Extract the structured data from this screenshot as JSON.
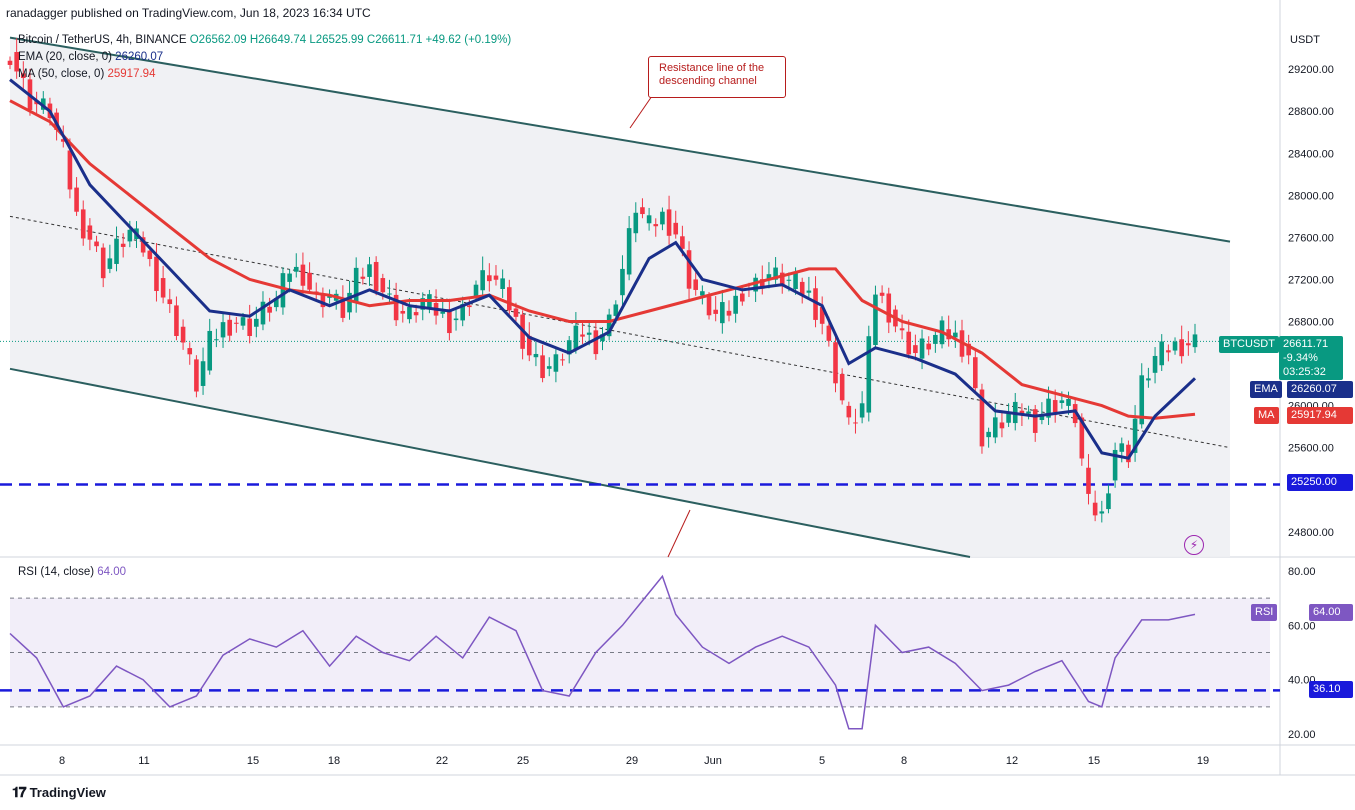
{
  "header": {
    "published_by": "ranadagger published on TradingView.com, Jun 18, 2023 16:34 UTC"
  },
  "legend": {
    "symbol": "Bitcoin / TetherUS, 4h, BINANCE",
    "open": "O26562.09",
    "high": "H26649.74",
    "low": "L26525.99",
    "close": "C26611.71",
    "change": "+49.62 (+0.19%)",
    "ema_label": "EMA (20, close, 0)",
    "ema_value": "26260.07",
    "ma_label": "MA (50, close, 0)",
    "ma_value": "25917.94",
    "rsi_label": "RSI (14, close)",
    "rsi_value": "64.00"
  },
  "annotation": {
    "callout": "Resistance line of the\ndescending channel"
  },
  "right_axis": {
    "currency": "USDT",
    "symbol_tag": "BTCUSDT",
    "last_price": "26611.71",
    "last_change": "-9.34%",
    "countdown": "03:25:32",
    "ema_tag": "EMA",
    "ema_price": "26260.07",
    "ma_tag": "MA",
    "ma_price": "25917.94",
    "support_price": "25250.00",
    "rsi_tag": "RSI",
    "rsi_value": "64.00",
    "rsi_level": "36.10"
  },
  "footer": {
    "brand": "TradingView"
  },
  "colors": {
    "up": "#089981",
    "down": "#f23645",
    "ema": "#1a2f8a",
    "ma": "#e53935",
    "rsi": "#7e57c2",
    "channel": "#2b5f5f",
    "support": "#1a1adb"
  },
  "chart_data": [
    {
      "type": "candlestick",
      "title": "Bitcoin / TetherUS, 4h, BINANCE",
      "ylabel": "USDT",
      "y_ticks": [
        24800,
        25600,
        26000,
        26400,
        26800,
        27200,
        27600,
        28000,
        28400,
        28800,
        29200
      ],
      "x_ticks": [
        "8",
        "11",
        "15",
        "18",
        "22",
        "25",
        "29",
        "Jun",
        "5",
        "8",
        "12",
        "15",
        "19"
      ],
      "ylim": [
        24560,
        29620
      ],
      "horizontal_support": 25250,
      "channel_upper": {
        "start": 29500,
        "end": 27560
      },
      "channel_lower": {
        "start": 26350,
        "end": 24650
      },
      "close_path": [
        [
          0,
          29350
        ],
        [
          3,
          28900
        ],
        [
          6,
          28800
        ],
        [
          8,
          28400
        ],
        [
          10,
          27800
        ],
        [
          12,
          27600
        ],
        [
          14,
          27300
        ],
        [
          16,
          27500
        ],
        [
          18,
          27650
        ],
        [
          20,
          27500
        ],
        [
          22,
          27200
        ],
        [
          24,
          26900
        ],
        [
          26,
          26600
        ],
        [
          28,
          26200
        ],
        [
          30,
          26600
        ],
        [
          32,
          26750
        ],
        [
          34,
          26800
        ],
        [
          36,
          26750
        ],
        [
          38,
          26900
        ],
        [
          40,
          27000
        ],
        [
          42,
          27300
        ],
        [
          44,
          27250
        ],
        [
          46,
          27000
        ],
        [
          48,
          27050
        ],
        [
          50,
          26900
        ],
        [
          52,
          27200
        ],
        [
          54,
          27300
        ],
        [
          56,
          27100
        ],
        [
          58,
          26900
        ],
        [
          60,
          26850
        ],
        [
          62,
          27000
        ],
        [
          64,
          26900
        ],
        [
          66,
          26800
        ],
        [
          68,
          26900
        ],
        [
          70,
          27150
        ],
        [
          72,
          27250
        ],
        [
          74,
          27100
        ],
        [
          76,
          26800
        ],
        [
          78,
          26500
        ],
        [
          80,
          26350
        ],
        [
          82,
          26400
        ],
        [
          84,
          26600
        ],
        [
          86,
          26700
        ],
        [
          88,
          26600
        ],
        [
          90,
          26800
        ],
        [
          92,
          27300
        ],
        [
          94,
          27900
        ],
        [
          96,
          27700
        ],
        [
          98,
          27800
        ],
        [
          100,
          27650
        ],
        [
          102,
          27200
        ],
        [
          104,
          27000
        ],
        [
          106,
          26850
        ],
        [
          108,
          26900
        ],
        [
          110,
          27100
        ],
        [
          112,
          27150
        ],
        [
          114,
          27250
        ],
        [
          116,
          27200
        ],
        [
          118,
          27150
        ],
        [
          120,
          27050
        ],
        [
          122,
          26800
        ],
        [
          124,
          26300
        ],
        [
          126,
          25800
        ],
        [
          128,
          26000
        ],
        [
          130,
          27100
        ],
        [
          132,
          26900
        ],
        [
          134,
          26650
        ],
        [
          136,
          26500
        ],
        [
          138,
          26600
        ],
        [
          140,
          26700
        ],
        [
          142,
          26650
        ],
        [
          144,
          26500
        ],
        [
          146,
          25700
        ],
        [
          148,
          25800
        ],
        [
          150,
          25900
        ],
        [
          152,
          25950
        ],
        [
          154,
          25850
        ],
        [
          156,
          26000
        ],
        [
          158,
          26050
        ],
        [
          160,
          25900
        ],
        [
          162,
          25050
        ],
        [
          164,
          24950
        ],
        [
          166,
          25600
        ],
        [
          168,
          25550
        ],
        [
          170,
          26200
        ],
        [
          172,
          26450
        ],
        [
          174,
          26550
        ],
        [
          176,
          26580
        ],
        [
          178,
          26611
        ]
      ],
      "ema_20_path": [
        [
          0,
          29100
        ],
        [
          6,
          28800
        ],
        [
          12,
          28100
        ],
        [
          18,
          27700
        ],
        [
          24,
          27300
        ],
        [
          30,
          26900
        ],
        [
          36,
          26850
        ],
        [
          42,
          27100
        ],
        [
          48,
          26950
        ],
        [
          54,
          27100
        ],
        [
          60,
          26950
        ],
        [
          66,
          26900
        ],
        [
          72,
          27050
        ],
        [
          78,
          26650
        ],
        [
          84,
          26500
        ],
        [
          90,
          26700
        ],
        [
          96,
          27400
        ],
        [
          100,
          27550
        ],
        [
          104,
          27200
        ],
        [
          110,
          27100
        ],
        [
          116,
          27150
        ],
        [
          122,
          26950
        ],
        [
          126,
          26400
        ],
        [
          130,
          26550
        ],
        [
          136,
          26450
        ],
        [
          142,
          26300
        ],
        [
          148,
          25950
        ],
        [
          154,
          25900
        ],
        [
          160,
          25950
        ],
        [
          164,
          25550
        ],
        [
          168,
          25500
        ],
        [
          172,
          25900
        ],
        [
          178,
          26260
        ]
      ],
      "ma_50_path": [
        [
          0,
          28900
        ],
        [
          6,
          28700
        ],
        [
          12,
          28300
        ],
        [
          18,
          28000
        ],
        [
          24,
          27700
        ],
        [
          30,
          27400
        ],
        [
          36,
          27200
        ],
        [
          42,
          27100
        ],
        [
          48,
          27050
        ],
        [
          54,
          26950
        ],
        [
          60,
          27000
        ],
        [
          66,
          27000
        ],
        [
          72,
          27050
        ],
        [
          78,
          26900
        ],
        [
          84,
          26800
        ],
        [
          90,
          26800
        ],
        [
          96,
          26900
        ],
        [
          102,
          27000
        ],
        [
          108,
          27100
        ],
        [
          114,
          27200
        ],
        [
          120,
          27300
        ],
        [
          124,
          27300
        ],
        [
          128,
          27000
        ],
        [
          134,
          26800
        ],
        [
          140,
          26700
        ],
        [
          146,
          26500
        ],
        [
          152,
          26200
        ],
        [
          158,
          26100
        ],
        [
          164,
          26000
        ],
        [
          168,
          25900
        ],
        [
          172,
          25880
        ],
        [
          178,
          25918
        ]
      ]
    },
    {
      "type": "line",
      "title": "RSI (14, close)",
      "y_ticks": [
        20,
        40,
        60,
        80
      ],
      "ylim": [
        16,
        84
      ],
      "band": [
        30,
        70
      ],
      "horizontal_level": 36.1,
      "values_path": [
        [
          0,
          57
        ],
        [
          4,
          48
        ],
        [
          8,
          30
        ],
        [
          12,
          34
        ],
        [
          16,
          45
        ],
        [
          20,
          40
        ],
        [
          24,
          30
        ],
        [
          28,
          34
        ],
        [
          32,
          49
        ],
        [
          36,
          55
        ],
        [
          40,
          52
        ],
        [
          44,
          58
        ],
        [
          48,
          45
        ],
        [
          52,
          56
        ],
        [
          56,
          50
        ],
        [
          60,
          47
        ],
        [
          64,
          56
        ],
        [
          68,
          48
        ],
        [
          72,
          63
        ],
        [
          76,
          58
        ],
        [
          80,
          36
        ],
        [
          84,
          34
        ],
        [
          88,
          50
        ],
        [
          92,
          60
        ],
        [
          96,
          72
        ],
        [
          98,
          78
        ],
        [
          100,
          64
        ],
        [
          104,
          52
        ],
        [
          108,
          46
        ],
        [
          112,
          52
        ],
        [
          116,
          56
        ],
        [
          120,
          52
        ],
        [
          124,
          38
        ],
        [
          126,
          22
        ],
        [
          128,
          22
        ],
        [
          130,
          60
        ],
        [
          134,
          50
        ],
        [
          138,
          52
        ],
        [
          142,
          46
        ],
        [
          146,
          36
        ],
        [
          150,
          38
        ],
        [
          154,
          43
        ],
        [
          158,
          47
        ],
        [
          162,
          32
        ],
        [
          164,
          30
        ],
        [
          166,
          48
        ],
        [
          170,
          62
        ],
        [
          174,
          62
        ],
        [
          178,
          64
        ]
      ]
    }
  ]
}
